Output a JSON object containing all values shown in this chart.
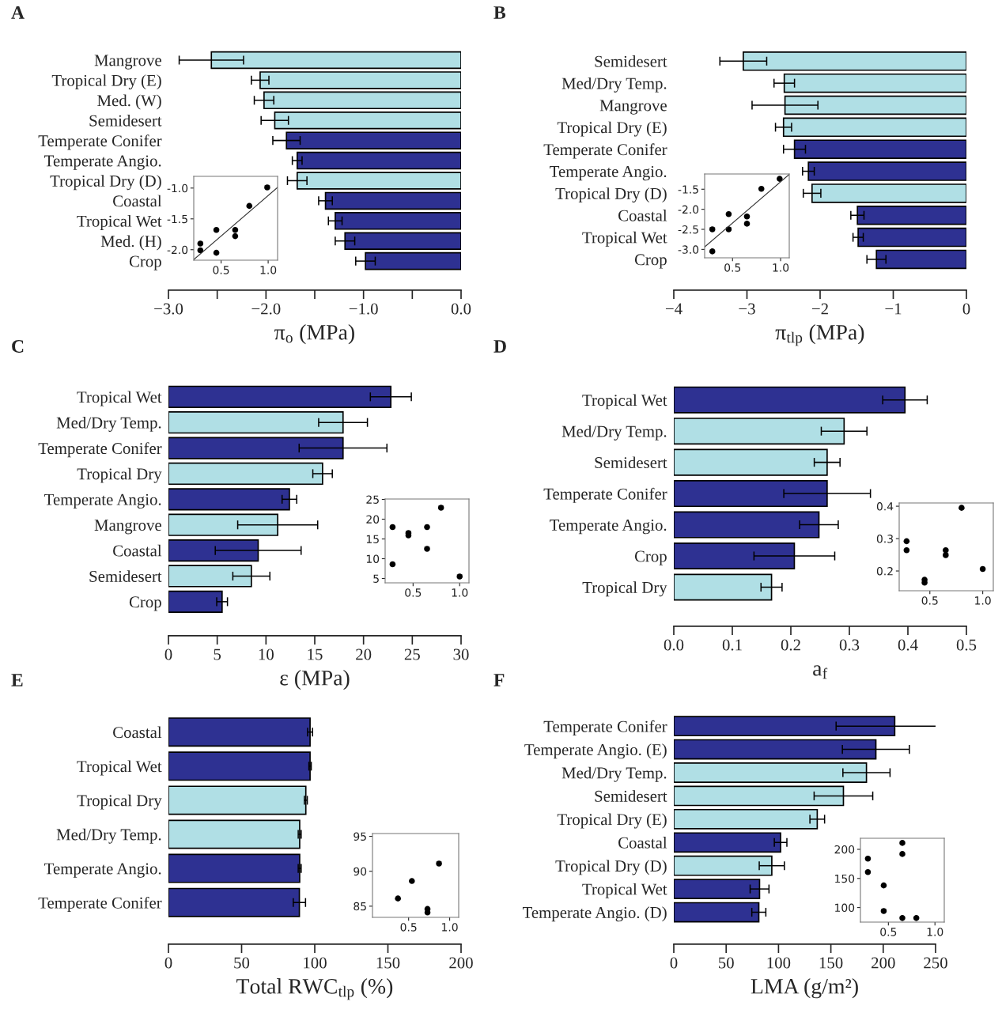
{
  "chart_data": [
    {
      "type": "bar",
      "title": "A",
      "orientation": "horizontal",
      "xlabel": "π$_{o}$ (MPa)",
      "categories": [
        "Mangrove",
        "Tropical Dry (E)",
        "Med. (W)",
        "Semidesert",
        "Temperate Conifer",
        "Temperate Angio.",
        "Tropical Dry (D)",
        "Coastal",
        "Tropical Wet",
        "Med. (H)",
        "Crop"
      ],
      "values": [
        -2.56,
        -2.06,
        -2.02,
        -1.91,
        -1.79,
        -1.68,
        -1.68,
        -1.39,
        -1.29,
        -1.19,
        -0.98
      ],
      "errors": [
        0.33,
        0.09,
        0.1,
        0.14,
        0.14,
        0.05,
        0.1,
        0.07,
        0.07,
        0.1,
        0.1
      ],
      "colors": [
        "#b0dfe5",
        "#b0dfe5",
        "#b0dfe5",
        "#b0dfe5",
        "#2e3192",
        "#2e3192",
        "#b0dfe5",
        "#2e3192",
        "#2e3192",
        "#2e3192",
        "#2e3192"
      ],
      "xlim": [
        -3,
        0
      ],
      "xticks": [
        {
          "value": -3,
          "label": "−3.0"
        },
        {
          "value": -2.5,
          "label": null
        },
        {
          "value": -2,
          "label": "−2.0"
        },
        {
          "value": -1.5,
          "label": null
        },
        {
          "value": -1,
          "label": "−1.0"
        },
        {
          "value": -0.5,
          "label": null
        },
        {
          "value": 0,
          "label": "0.0"
        }
      ]
    },
    {
      "type": "scatter",
      "xlim": [
        0.21,
        1.1
      ],
      "ylim": [
        -2.17,
        -0.81
      ],
      "xticks": [
        0.5,
        {
          "value": 1,
          "label": "1.0"
        }
      ],
      "yticks": [
        {
          "value": -1,
          "label": "-1.0"
        },
        -1.5,
        {
          "value": -2,
          "label": "-2.0"
        }
      ],
      "series": [
        {
          "type": "scatter",
          "marker": "circle",
          "color": "#000000",
          "x": [
            0.28,
            0.28,
            0.45,
            0.45,
            0.65,
            0.65,
            0.8,
            0.99
          ],
          "values": [
            -1.9,
            -2.01,
            -1.68,
            -2.05,
            -1.68,
            -1.78,
            -1.29,
            -0.99
          ]
        },
        {
          "type": "line",
          "color": "#333333",
          "x": [
            0.21,
            1.1
          ],
          "values": [
            -2.16,
            -0.99
          ]
        }
      ]
    },
    {
      "type": "bar",
      "title": "B",
      "orientation": "horizontal",
      "xlabel": "π$_{tlp}$ (MPa)",
      "categories": [
        "Semidesert",
        "Med/Dry Temp.",
        "Mangrove",
        "Tropical Dry (E)",
        "Temperate Conifer",
        "Temperate Angio.",
        "Tropical Dry (D)",
        "Coastal",
        "Tropical Wet",
        "Crop"
      ],
      "values": [
        -3.05,
        -2.49,
        -2.48,
        -2.5,
        -2.35,
        -2.16,
        -2.11,
        -1.49,
        -1.48,
        -1.23
      ],
      "errors": [
        0.32,
        0.14,
        0.45,
        0.11,
        0.15,
        0.08,
        0.12,
        0.09,
        0.07,
        0.13
      ],
      "colors": [
        "#b0dfe5",
        "#b0dfe5",
        "#b0dfe5",
        "#b0dfe5",
        "#2e3192",
        "#2e3192",
        "#b0dfe5",
        "#2e3192",
        "#2e3192",
        "#2e3192"
      ],
      "xlim": [
        -4,
        0
      ],
      "xticks": [
        {
          "value": -4,
          "label": "−4"
        },
        {
          "value": -3,
          "label": "−3"
        },
        {
          "value": -2,
          "label": "−2"
        },
        {
          "value": -1,
          "label": "−1"
        },
        0
      ]
    },
    {
      "type": "scatter",
      "xlim": [
        0.21,
        1.09
      ],
      "ylim": [
        -3.21,
        -1.12
      ],
      "xticks": [
        0.5,
        {
          "value": 1,
          "label": "1.0"
        }
      ],
      "yticks": [
        -1.5,
        {
          "value": -2,
          "label": "-2.0"
        },
        -2.5,
        {
          "value": -3,
          "label": "-3.0"
        }
      ],
      "series": [
        {
          "type": "scatter",
          "marker": "circle",
          "color": "#000000",
          "x": [
            0.99,
            0.8,
            0.46,
            0.65,
            0.65,
            0.29,
            0.46,
            0.29
          ],
          "values": [
            -1.24,
            -1.49,
            -2.12,
            -2.18,
            -2.36,
            -2.5,
            -2.5,
            -3.05
          ]
        },
        {
          "type": "line",
          "color": "#333333",
          "x": [
            0.21,
            1.09
          ],
          "values": [
            -2.94,
            -1.13
          ]
        }
      ]
    },
    {
      "type": "bar",
      "title": "C",
      "orientation": "horizontal",
      "xlabel": "ε (MPa)",
      "categories": [
        "Tropical Wet",
        "Med/Dry Temp.",
        "Temperate Conifer",
        "Tropical Dry",
        "Temperate Angio.",
        "Mangrove",
        "Coastal",
        "Semidesert",
        "Crop"
      ],
      "values": [
        22.8,
        17.9,
        17.9,
        15.8,
        12.4,
        11.2,
        9.2,
        8.5,
        5.5
      ],
      "errors": [
        2.1,
        2.5,
        4.5,
        1.0,
        0.75,
        4.1,
        4.4,
        1.9,
        0.55
      ],
      "colors": [
        "#2e3192",
        "#b0dfe5",
        "#2e3192",
        "#b0dfe5",
        "#2e3192",
        "#b0dfe5",
        "#2e3192",
        "#b0dfe5",
        "#2e3192"
      ],
      "xlim": [
        0,
        30
      ],
      "xticks": [
        0,
        5,
        10,
        15,
        20,
        25,
        30
      ]
    },
    {
      "type": "scatter",
      "xlim": [
        0.2,
        1.1
      ],
      "ylim": [
        3.9,
        25.1
      ],
      "xticks": [
        0.5,
        {
          "value": 1,
          "label": "1.0"
        }
      ],
      "yticks": [
        5,
        10,
        15,
        20,
        25
      ],
      "series": [
        {
          "type": "scatter",
          "marker": "circle",
          "color": "#000000",
          "x": [
            0.28,
            0.45,
            0.45,
            0.65,
            0.65,
            0.8,
            0.28,
            1.0
          ],
          "values": [
            18.0,
            16.5,
            15.9,
            18.0,
            12.5,
            22.9,
            8.6,
            5.5
          ]
        }
      ]
    },
    {
      "type": "bar",
      "title": "D",
      "orientation": "horizontal",
      "xlabel": "a$_{f}$",
      "categories": [
        "Tropical Wet",
        "Med/Dry Temp.",
        "Semidesert",
        "Temperate Conifer",
        "Temperate Angio.",
        "Crop",
        "Tropical Dry"
      ],
      "values": [
        0.395,
        0.291,
        0.262,
        0.262,
        0.248,
        0.206,
        0.167
      ],
      "errors": [
        0.038,
        0.039,
        0.022,
        0.074,
        0.033,
        0.069,
        0.018
      ],
      "colors": [
        "#2e3192",
        "#b0dfe5",
        "#b0dfe5",
        "#2e3192",
        "#2e3192",
        "#2e3192",
        "#b0dfe5"
      ],
      "xlim": [
        0,
        0.5
      ],
      "xticks": [
        {
          "value": 0,
          "label": "0.0"
        },
        0.1,
        0.2,
        0.3,
        0.4,
        0.5
      ]
    },
    {
      "type": "scatter",
      "xlim": [
        0.21,
        1.1
      ],
      "ylim": [
        0.139,
        0.41
      ],
      "xticks": [
        0.5,
        {
          "value": 1,
          "label": "1.0"
        }
      ],
      "yticks": [
        0.2,
        0.3,
        0.4
      ],
      "series": [
        {
          "type": "scatter",
          "marker": "circle",
          "color": "#000000",
          "x": [
            0.28,
            0.28,
            0.45,
            0.45,
            0.65,
            0.65,
            0.8,
            1.0
          ],
          "values": [
            0.292,
            0.264,
            0.173,
            0.164,
            0.264,
            0.249,
            0.395,
            0.206
          ]
        }
      ]
    },
    {
      "type": "bar",
      "title": "E",
      "orientation": "horizontal",
      "xlabel": "Total RWC$_{tlp}$ (%)",
      "categories": [
        "Coastal",
        "Tropical Wet",
        "Tropical Dry",
        "Med/Dry Temp.",
        "Temperate Angio.",
        "Temperate Conifer"
      ],
      "values": [
        96.8,
        96.8,
        93.9,
        89.7,
        89.7,
        89.5
      ],
      "errors": [
        1.7,
        0.8,
        1.0,
        1.0,
        1.0,
        4.2
      ],
      "colors": [
        "#2e3192",
        "#2e3192",
        "#b0dfe5",
        "#b0dfe5",
        "#2e3192",
        "#2e3192"
      ],
      "xlim": [
        0,
        200
      ],
      "xticks": [
        0,
        50,
        100,
        150,
        200
      ]
    },
    {
      "type": "scatter",
      "xlim": [
        0.06,
        1.11
      ],
      "ylim": [
        83.4,
        95.4
      ],
      "xticks": [
        0.5,
        {
          "value": 1,
          "label": "1.0"
        }
      ],
      "yticks": [
        85,
        90,
        95
      ],
      "series": [
        {
          "type": "scatter",
          "marker": "circle",
          "color": "#000000",
          "x": [
            0.37,
            0.54,
            0.73,
            0.73,
            0.87
          ],
          "values": [
            86.1,
            88.6,
            84.6,
            84.1,
            91.1
          ]
        }
      ]
    },
    {
      "type": "bar",
      "title": "F",
      "orientation": "horizontal",
      "xlabel": "LMA (g/m²)",
      "categories": [
        "Temperate Conifer",
        "Temperate Angio. (E)",
        "Med/Dry Temp.",
        "Semidesert",
        "Tropical Dry (E)",
        "Coastal",
        "Tropical Dry (D)",
        "Tropical Wet",
        "Temperate Angio. (D)"
      ],
      "values": [
        211,
        193,
        184,
        162,
        137,
        102,
        93.6,
        81.9,
        81.2
      ],
      "errors": [
        56,
        32,
        22.5,
        28,
        7,
        6,
        12,
        9,
        6.7
      ],
      "colors": [
        "#2e3192",
        "#2e3192",
        "#b0dfe5",
        "#b0dfe5",
        "#b0dfe5",
        "#2e3192",
        "#b0dfe5",
        "#2e3192",
        "#2e3192"
      ],
      "xlim": [
        0,
        250
      ],
      "xticks": [
        0,
        50,
        100,
        150,
        200,
        250
      ]
    },
    {
      "type": "scatter",
      "xlim": [
        0.2,
        1.1
      ],
      "ylim": [
        75,
        219
      ],
      "xticks": [
        0.5,
        {
          "value": 1,
          "label": "1.0"
        }
      ],
      "yticks": [
        100,
        150,
        200
      ],
      "series": [
        {
          "type": "scatter",
          "marker": "circle",
          "color": "#000000",
          "x": [
            0.28,
            0.28,
            0.45,
            0.45,
            0.65,
            0.65,
            0.65,
            0.8
          ],
          "values": [
            184,
            161,
            138,
            94,
            211,
            192,
            82,
            82
          ]
        }
      ]
    }
  ]
}
